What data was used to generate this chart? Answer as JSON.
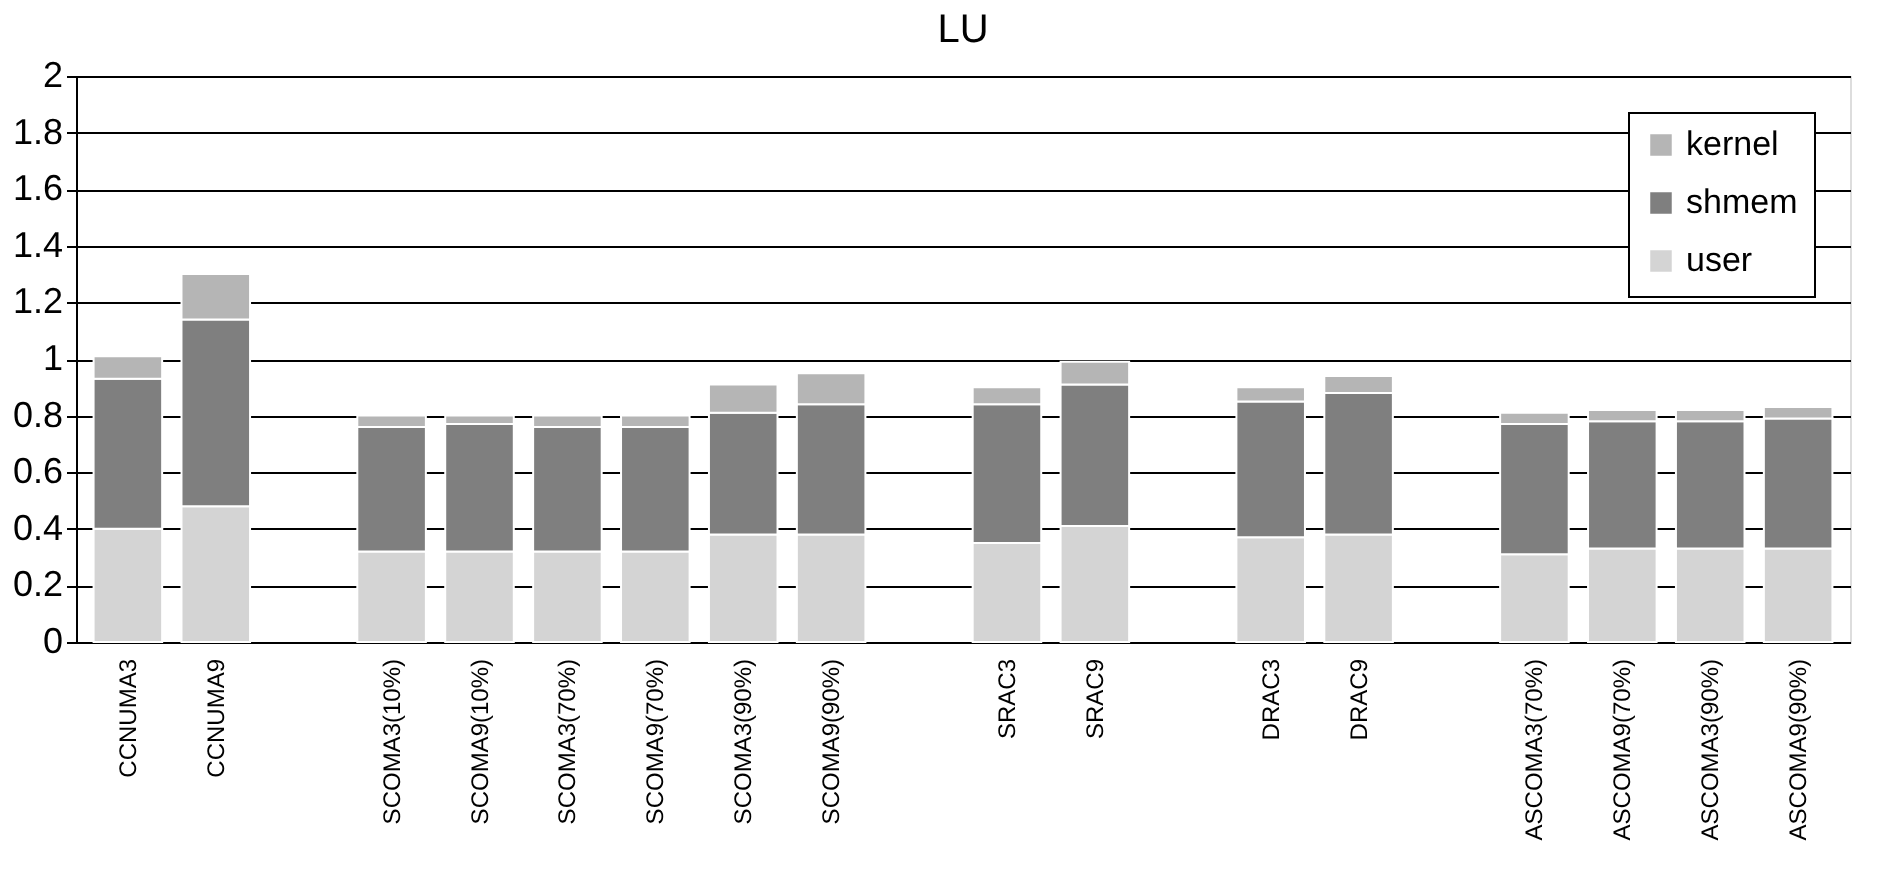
{
  "chart_data": {
    "type": "bar",
    "title": "LU",
    "stacked": true,
    "categories": [
      "CCNUMA3",
      "CCNUMA9",
      null,
      "SCOMA3(10%)",
      "SCOMA9(10%)",
      "SCOMA3(70%)",
      "SCOMA9(70%)",
      "SCOMA3(90%)",
      "SCOMA9(90%)",
      null,
      "SRAC3",
      "SRAC9",
      null,
      "DRAC3",
      "DRAC9",
      null,
      "ASCOMA3(70%)",
      "ASCOMA9(70%)",
      "ASCOMA3(90%)",
      "ASCOMA9(90%)"
    ],
    "series": [
      {
        "name": "user",
        "color": "#d4d4d4",
        "values": [
          0.4,
          0.48,
          null,
          0.32,
          0.32,
          0.32,
          0.32,
          0.38,
          0.38,
          null,
          0.35,
          0.41,
          null,
          0.37,
          0.38,
          null,
          0.31,
          0.33,
          0.33,
          0.33
        ]
      },
      {
        "name": "shmem",
        "color": "#7f7f7f",
        "values": [
          0.53,
          0.66,
          null,
          0.44,
          0.45,
          0.44,
          0.44,
          0.43,
          0.46,
          null,
          0.49,
          0.5,
          null,
          0.48,
          0.5,
          null,
          0.46,
          0.45,
          0.45,
          0.46
        ]
      },
      {
        "name": "kernel",
        "color": "#b5b5b5",
        "values": [
          0.08,
          0.16,
          null,
          0.04,
          0.03,
          0.04,
          0.04,
          0.1,
          0.11,
          null,
          0.06,
          0.08,
          null,
          0.05,
          0.06,
          null,
          0.04,
          0.04,
          0.04,
          0.04
        ]
      }
    ],
    "ylim": [
      0,
      2
    ],
    "yticks": [
      0,
      0.2,
      0.4,
      0.6,
      0.8,
      1,
      1.2,
      1.4,
      1.6,
      1.8,
      2
    ],
    "grid": "y",
    "legend": "top right"
  }
}
